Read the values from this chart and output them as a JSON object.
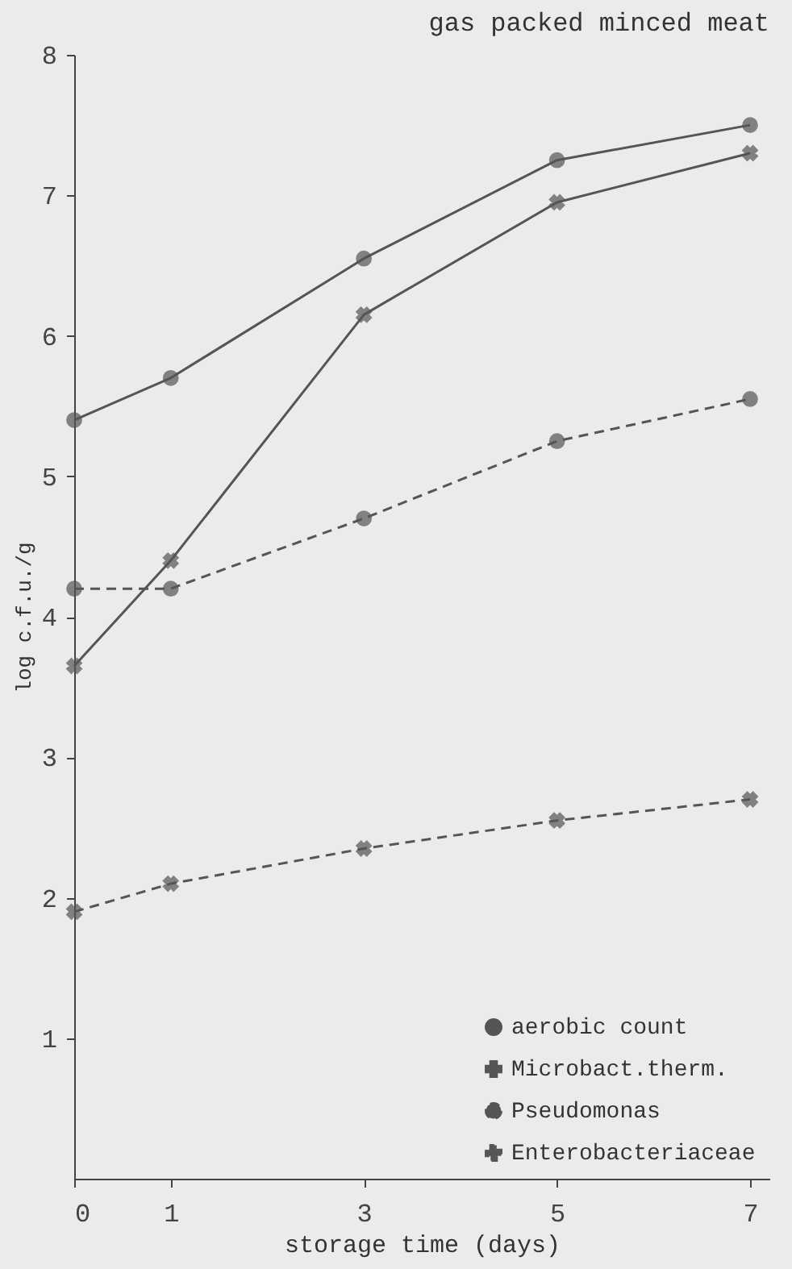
{
  "chart_data": {
    "type": "line",
    "title": "gas packed minced meat",
    "xlabel": "storage time (days)",
    "ylabel": "log c.f.u./g",
    "x": [
      0,
      1,
      3,
      5,
      7
    ],
    "series": [
      {
        "name": "aerobic count",
        "color": "#555555",
        "marker": "circle",
        "line_style": "solid",
        "values": [
          5.4,
          5.7,
          6.55,
          7.25,
          7.5
        ]
      },
      {
        "name": "Microbact.therm.",
        "color": "#555555",
        "marker": "cross",
        "line_style": "solid",
        "values": [
          3.65,
          4.4,
          6.15,
          6.95,
          7.3
        ]
      },
      {
        "name": "Pseudomonas",
        "color": "#555555",
        "marker": "circle",
        "line_style": "dashed",
        "values": [
          4.2,
          4.2,
          4.7,
          5.25,
          5.55
        ]
      },
      {
        "name": "Enterobacteriaceae",
        "color": "#555555",
        "marker": "cross",
        "line_style": "dashed",
        "values": [
          1.9,
          2.1,
          2.35,
          2.55,
          2.7
        ]
      }
    ],
    "xlim": [
      0,
      7.2
    ],
    "ylim": [
      0,
      8
    ],
    "xticks": [
      0,
      1,
      3,
      5,
      7
    ],
    "yticks": [
      1,
      2,
      3,
      4,
      5,
      6,
      7,
      8
    ],
    "grid": false,
    "legend": "bottom right"
  }
}
